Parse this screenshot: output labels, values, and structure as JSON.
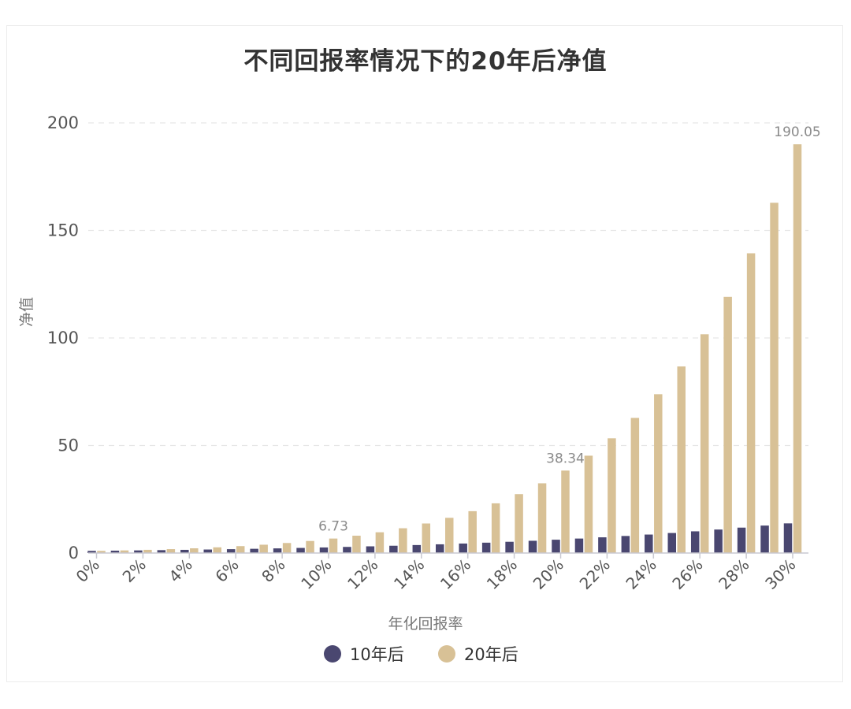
{
  "chart_data": {
    "type": "bar",
    "title": "不同回报率情况下的20年后净值",
    "xlabel": "年化回报率",
    "ylabel": "净值",
    "ylim": [
      0,
      200
    ],
    "yticks": [
      0,
      50,
      100,
      150,
      200
    ],
    "grid": true,
    "legend_position": "bottom",
    "categories": [
      "0%",
      "1%",
      "2%",
      "3%",
      "4%",
      "5%",
      "6%",
      "7%",
      "8%",
      "9%",
      "10%",
      "11%",
      "12%",
      "13%",
      "14%",
      "15%",
      "16%",
      "17%",
      "18%",
      "19%",
      "20%",
      "21%",
      "22%",
      "23%",
      "24%",
      "25%",
      "26%",
      "27%",
      "28%",
      "29%",
      "30%"
    ],
    "tick_labels": [
      "0%",
      "",
      "2%",
      "",
      "4%",
      "",
      "6%",
      "",
      "8%",
      "",
      "10%",
      "",
      "12%",
      "",
      "14%",
      "",
      "16%",
      "",
      "18%",
      "",
      "20%",
      "",
      "22%",
      "",
      "24%",
      "",
      "26%",
      "",
      "28%",
      "",
      "30%"
    ],
    "series": [
      {
        "name": "10年后",
        "color": "#4a4770",
        "values": [
          1.0,
          1.1,
          1.22,
          1.34,
          1.48,
          1.63,
          1.79,
          1.97,
          2.16,
          2.37,
          2.59,
          2.84,
          3.11,
          3.39,
          3.71,
          4.05,
          4.41,
          4.81,
          5.23,
          5.69,
          6.19,
          6.73,
          7.3,
          7.93,
          8.59,
          9.31,
          10.09,
          10.92,
          11.81,
          12.76,
          13.79
        ]
      },
      {
        "name": "20年后",
        "color": "#d8c196",
        "values": [
          1.0,
          1.22,
          1.49,
          1.81,
          2.19,
          2.65,
          3.21,
          3.87,
          4.66,
          5.6,
          6.73,
          8.06,
          9.65,
          11.52,
          13.74,
          16.37,
          19.46,
          23.11,
          27.39,
          32.43,
          38.34,
          45.26,
          53.36,
          62.82,
          73.86,
          86.74,
          101.72,
          119.12,
          139.38,
          162.85,
          190.05
        ]
      }
    ],
    "annotations": [
      {
        "series": 1,
        "index": 10,
        "text": "6.73"
      },
      {
        "series": 1,
        "index": 20,
        "text": "38.34"
      },
      {
        "series": 1,
        "index": 30,
        "text": "190.05"
      }
    ]
  }
}
